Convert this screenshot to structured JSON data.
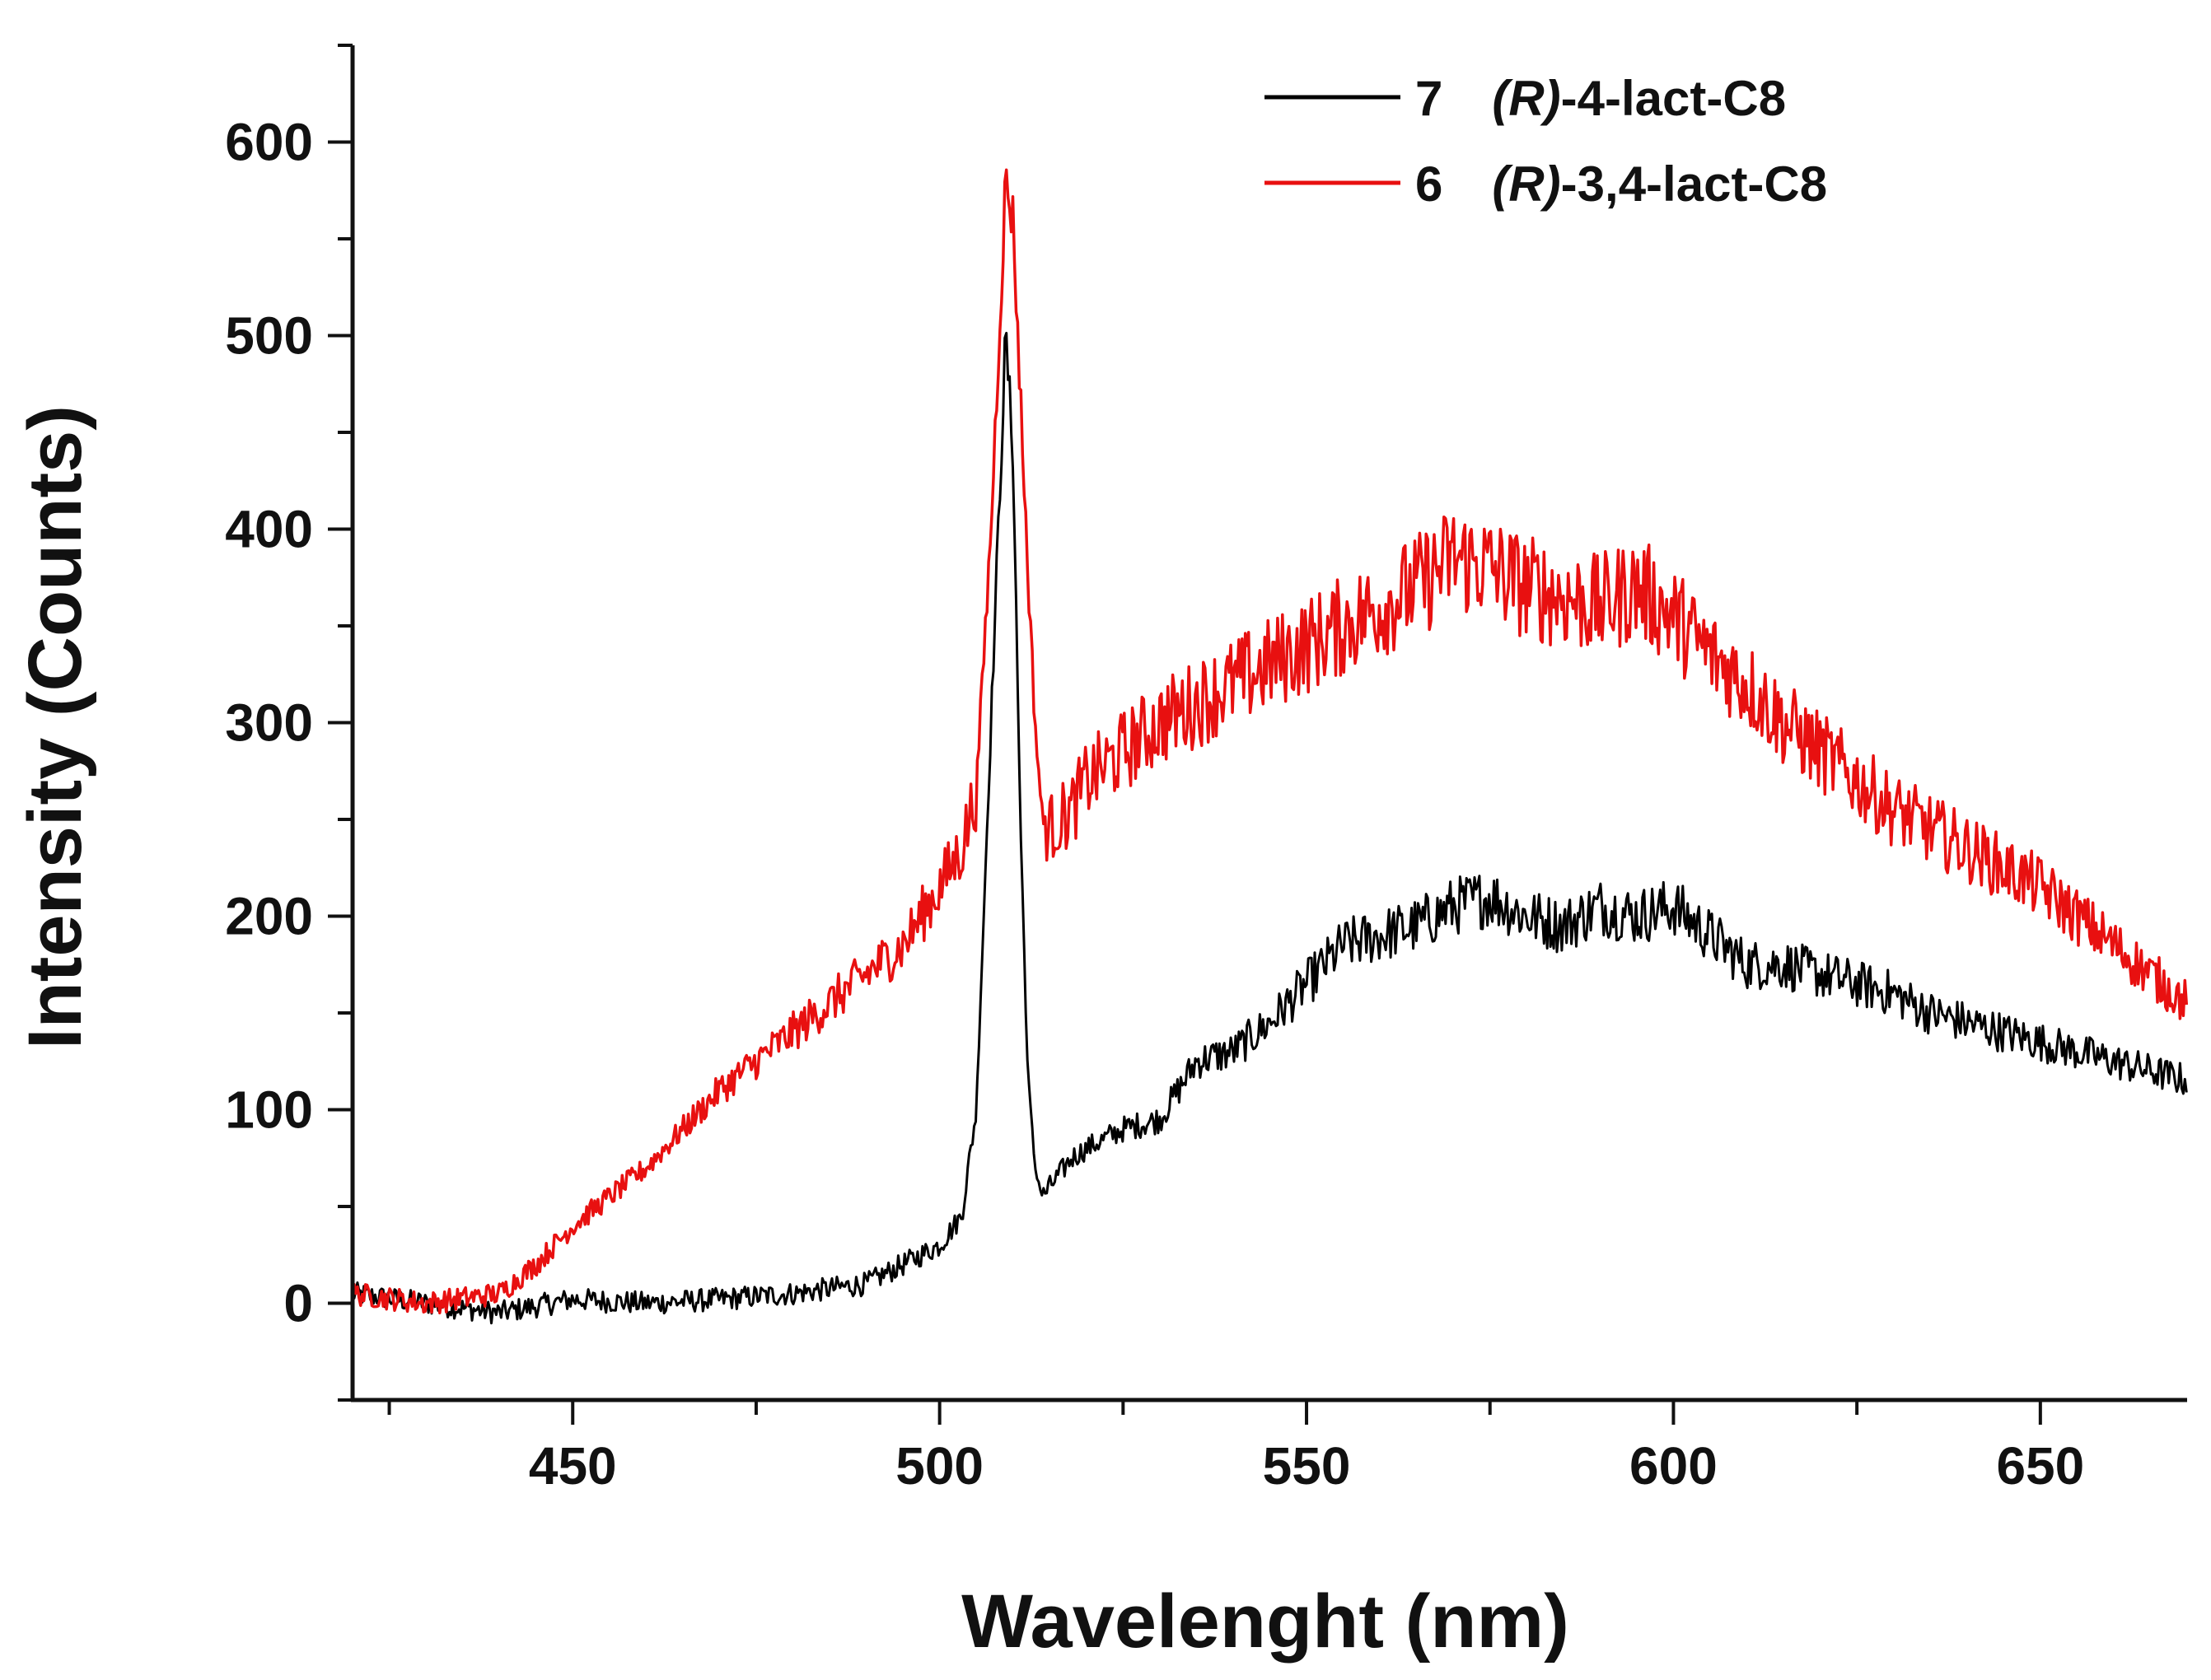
{
  "chart_data": {
    "type": "line",
    "title": "",
    "xlabel": "Wavelenght (nm)",
    "ylabel": "Intensity (Counts)",
    "xlim": [
      420,
      670
    ],
    "ylim": [
      -50,
      650
    ],
    "xticks": [
      450,
      500,
      550,
      600,
      650
    ],
    "xtick_labels": [
      "450",
      "500",
      "550",
      "600",
      "650"
    ],
    "yticks": [
      0,
      100,
      200,
      300,
      400,
      500,
      600
    ],
    "ytick_labels": [
      "0",
      "100",
      "200",
      "300",
      "400",
      "500",
      "600"
    ],
    "grid": false,
    "legend_position": "top-right",
    "series": [
      {
        "name": "7 (R)-4-lact-C8",
        "legend_num": "7",
        "legend_prefix": "(R)",
        "legend_suffix": "-4-lact-C8",
        "color": "#000000",
        "x": [
          420,
          430,
          440,
          450,
          460,
          470,
          480,
          490,
          495,
          500,
          503,
          505,
          507,
          509,
          510,
          511,
          512,
          513,
          514,
          515,
          518,
          520,
          525,
          530,
          535,
          540,
          545,
          550,
          555,
          560,
          565,
          570,
          575,
          580,
          585,
          590,
          595,
          600,
          605,
          610,
          615,
          620,
          625,
          630,
          635,
          640,
          645,
          650,
          655,
          660,
          665,
          670
        ],
        "y": [
          5,
          0,
          -5,
          2,
          0,
          2,
          5,
          10,
          20,
          30,
          45,
          100,
          300,
          500,
          440,
          250,
          120,
          70,
          55,
          60,
          75,
          80,
          90,
          95,
          125,
          130,
          145,
          165,
          185,
          190,
          195,
          205,
          210,
          200,
          195,
          205,
          200,
          205,
          190,
          175,
          175,
          170,
          165,
          160,
          150,
          145,
          140,
          135,
          130,
          125,
          120,
          115
        ]
      },
      {
        "name": "6 (R)-3,4-lact-C8",
        "legend_num": "6",
        "legend_prefix": "(R)",
        "legend_suffix": "-3,4-lact-C8",
        "color": "#e81010",
        "x": [
          420,
          430,
          440,
          445,
          450,
          455,
          460,
          465,
          470,
          475,
          480,
          485,
          490,
          495,
          500,
          503,
          505,
          507,
          509,
          510,
          511,
          512,
          513,
          514,
          515,
          518,
          520,
          525,
          530,
          535,
          540,
          545,
          550,
          555,
          560,
          565,
          570,
          575,
          580,
          585,
          590,
          595,
          600,
          605,
          610,
          615,
          620,
          625,
          630,
          635,
          640,
          645,
          650,
          655,
          660,
          665,
          670
        ],
        "y": [
          5,
          0,
          5,
          20,
          40,
          55,
          70,
          90,
          110,
          125,
          140,
          155,
          170,
          185,
          215,
          235,
          265,
          400,
          580,
          560,
          470,
          380,
          300,
          250,
          245,
          255,
          270,
          285,
          300,
          310,
          320,
          330,
          340,
          350,
          360,
          370,
          385,
          380,
          370,
          365,
          360,
          370,
          355,
          335,
          320,
          300,
          285,
          270,
          255,
          245,
          235,
          225,
          215,
          200,
          185,
          170,
          155
        ]
      }
    ]
  }
}
